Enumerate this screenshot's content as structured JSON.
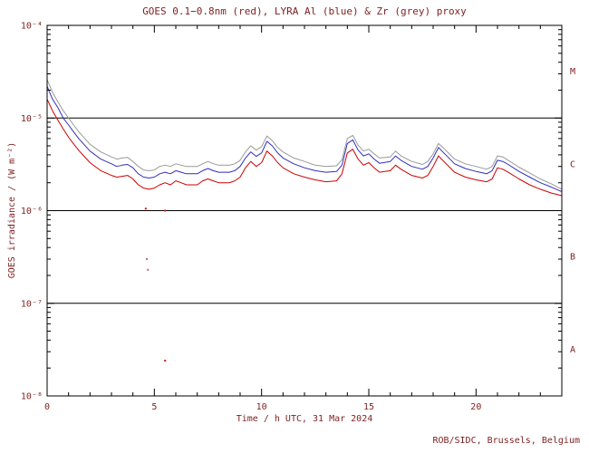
{
  "colors": {
    "background": "#ffffff",
    "text": "#7e1f1f",
    "axis": "#000000",
    "series_red": "#cc0000",
    "series_blue": "#2f2fbe",
    "series_grey": "#999999"
  },
  "chart_data": {
    "type": "line",
    "title": "GOES 0.1−0.8nm (red), LYRA Al (blue) & Zr (grey) proxy",
    "xlabel": "Time / h UTC, 31 Mar 2024",
    "ylabel": "GOES irradiance / (W m⁻²)",
    "credit": "ROB/SIDC, Brussels, Belgium",
    "legend": "none",
    "grid": "off",
    "y_scale": "log",
    "xlim": [
      0,
      24
    ],
    "x_major_ticks": [
      0,
      5,
      10,
      15,
      20
    ],
    "x_minor_step": 1,
    "ylim_exponents": [
      -8,
      -4
    ],
    "y_tick_labels": [
      "10⁻⁸",
      "10⁻⁷",
      "10⁻⁶",
      "10⁻⁵",
      "10⁻⁴"
    ],
    "class_boundaries": [
      1e-07,
      1e-06,
      1e-05
    ],
    "flare_classes": [
      {
        "label": "M",
        "value": 3.2e-05
      },
      {
        "label": "C",
        "value": 3.2e-06
      },
      {
        "label": "B",
        "value": 3.2e-07
      },
      {
        "label": "A",
        "value": 3.2e-08
      }
    ],
    "x": [
      0,
      0.25,
      0.5,
      0.75,
      1,
      1.25,
      1.5,
      2,
      2.5,
      3,
      3.25,
      3.5,
      3.75,
      4,
      4.25,
      4.5,
      4.75,
      5,
      5.25,
      5.5,
      5.75,
      6,
      6.25,
      6.5,
      7,
      7.25,
      7.5,
      7.75,
      8,
      8.5,
      8.75,
      9,
      9.25,
      9.5,
      9.75,
      10,
      10.25,
      10.5,
      10.75,
      11,
      11.5,
      12,
      12.5,
      13,
      13.5,
      13.75,
      14,
      14.25,
      14.5,
      14.75,
      15,
      15.25,
      15.5,
      16,
      16.25,
      16.5,
      17,
      17.5,
      17.75,
      18,
      18.25,
      18.5,
      19,
      19.5,
      20,
      20.5,
      20.75,
      21,
      21.25,
      21.5,
      22,
      22.5,
      23,
      23.5,
      24
    ],
    "series": [
      {
        "id": "goes",
        "name": "GOES 0.1−0.8nm",
        "color": "#cc0000",
        "values": [
          1.6e-05,
          1.2e-05,
          9.5e-06,
          7.6e-06,
          6.2e-06,
          5.2e-06,
          4.4e-06,
          3.3e-06,
          2.7e-06,
          2.4e-06,
          2.3e-06,
          2.35e-06,
          2.4e-06,
          2.2e-06,
          1.9e-06,
          1.75e-06,
          1.7e-06,
          1.75e-06,
          1.9e-06,
          2e-06,
          1.9e-06,
          2.1e-06,
          2e-06,
          1.9e-06,
          1.9e-06,
          2.1e-06,
          2.2e-06,
          2.1e-06,
          2e-06,
          2e-06,
          2.1e-06,
          2.3e-06,
          2.9e-06,
          3.4e-06,
          3e-06,
          3.3e-06,
          4.4e-06,
          3.9e-06,
          3.3e-06,
          2.9e-06,
          2.5e-06,
          2.3e-06,
          2.15e-06,
          2.05e-06,
          2.1e-06,
          2.5e-06,
          4.2e-06,
          4.6e-06,
          3.6e-06,
          3.1e-06,
          3.3e-06,
          2.9e-06,
          2.6e-06,
          2.7e-06,
          3.1e-06,
          2.8e-06,
          2.4e-06,
          2.25e-06,
          2.4e-06,
          3e-06,
          3.9e-06,
          3.4e-06,
          2.6e-06,
          2.3e-06,
          2.15e-06,
          2.05e-06,
          2.2e-06,
          2.9e-06,
          2.8e-06,
          2.6e-06,
          2.2e-06,
          1.9e-06,
          1.7e-06,
          1.55e-06,
          1.45e-06
        ]
      },
      {
        "id": "lyra-al",
        "name": "LYRA Al proxy",
        "color": "#2f2fbe",
        "values": [
          2.2e-05,
          1.6e-05,
          1.3e-05,
          1e-05,
          8.4e-06,
          7e-06,
          5.9e-06,
          4.4e-06,
          3.6e-06,
          3.2e-06,
          3e-06,
          3.1e-06,
          3.15e-06,
          2.9e-06,
          2.5e-06,
          2.3e-06,
          2.25e-06,
          2.3e-06,
          2.5e-06,
          2.6e-06,
          2.5e-06,
          2.7e-06,
          2.6e-06,
          2.5e-06,
          2.5e-06,
          2.7e-06,
          2.85e-06,
          2.7e-06,
          2.6e-06,
          2.6e-06,
          2.7e-06,
          3e-06,
          3.7e-06,
          4.3e-06,
          3.85e-06,
          4.2e-06,
          5.6e-06,
          5e-06,
          4.2e-06,
          3.7e-06,
          3.2e-06,
          2.9e-06,
          2.7e-06,
          2.6e-06,
          2.65e-06,
          3.1e-06,
          5.3e-06,
          5.8e-06,
          4.5e-06,
          3.9e-06,
          4.1e-06,
          3.6e-06,
          3.25e-06,
          3.4e-06,
          3.9e-06,
          3.5e-06,
          3e-06,
          2.8e-06,
          3e-06,
          3.7e-06,
          4.8e-06,
          4.2e-06,
          3.2e-06,
          2.85e-06,
          2.65e-06,
          2.5e-06,
          2.7e-06,
          3.5e-06,
          3.4e-06,
          3.15e-06,
          2.65e-06,
          2.3e-06,
          2e-06,
          1.8e-06,
          1.6e-06
        ]
      },
      {
        "id": "lyra-zr",
        "name": "LYRA Zr proxy",
        "color": "#999999",
        "values": [
          2.6e-05,
          1.9e-05,
          1.5e-05,
          1.2e-05,
          1e-05,
          8.3e-06,
          7e-06,
          5.2e-06,
          4.3e-06,
          3.8e-06,
          3.6e-06,
          3.7e-06,
          3.75e-06,
          3.4e-06,
          3e-06,
          2.75e-06,
          2.7e-06,
          2.75e-06,
          3e-06,
          3.1e-06,
          3e-06,
          3.2e-06,
          3.1e-06,
          3e-06,
          3e-06,
          3.2e-06,
          3.4e-06,
          3.2e-06,
          3.1e-06,
          3.1e-06,
          3.2e-06,
          3.5e-06,
          4.3e-06,
          5e-06,
          4.5e-06,
          4.9e-06,
          6.4e-06,
          5.7e-06,
          4.8e-06,
          4.3e-06,
          3.7e-06,
          3.4e-06,
          3.1e-06,
          3e-06,
          3.05e-06,
          3.55e-06,
          6e-06,
          6.5e-06,
          5.1e-06,
          4.4e-06,
          4.6e-06,
          4.1e-06,
          3.7e-06,
          3.8e-06,
          4.4e-06,
          3.9e-06,
          3.4e-06,
          3.15e-06,
          3.4e-06,
          4.1e-06,
          5.3e-06,
          4.7e-06,
          3.6e-06,
          3.2e-06,
          3e-06,
          2.8e-06,
          3e-06,
          3.9e-06,
          3.8e-06,
          3.5e-06,
          2.95e-06,
          2.55e-06,
          2.2e-06,
          1.95e-06,
          1.7e-06
        ]
      }
    ],
    "artifact_points": [
      {
        "x": 4.6,
        "y": 1.05e-06,
        "color": "#cc2222"
      },
      {
        "x": 5.5,
        "y": 1e-06,
        "color": "#cc2222"
      },
      {
        "x": 4.65,
        "y": 3e-07,
        "color": "#cc6699"
      },
      {
        "x": 4.7,
        "y": 2.3e-07,
        "color": "#cc6699"
      },
      {
        "x": 5.5,
        "y": 2.4e-08,
        "color": "#cc2222"
      }
    ]
  }
}
